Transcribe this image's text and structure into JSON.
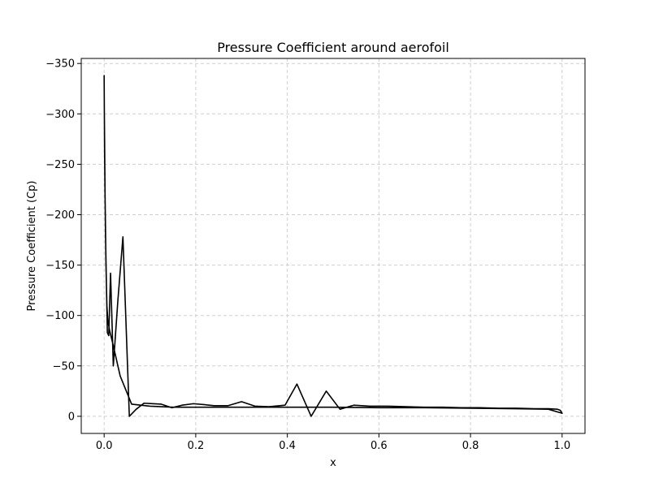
{
  "chart_data": {
    "type": "line",
    "title": "Pressure Coefficient around aerofoil",
    "xlabel": "x",
    "ylabel": "Pressure Coefficient (Cp)",
    "xlim": [
      -0.05,
      1.05
    ],
    "ylim": [
      17,
      -355
    ],
    "y_inverted": true,
    "grid": true,
    "grid_style": "dashed",
    "line_color": "#000000",
    "x_ticks": [
      0.0,
      0.2,
      0.4,
      0.6,
      0.8,
      1.0
    ],
    "x_tick_labels": [
      "0.0",
      "0.2",
      "0.4",
      "0.6",
      "0.8",
      "1.0"
    ],
    "y_ticks": [
      -350,
      -300,
      -250,
      -200,
      -150,
      -100,
      -50,
      0
    ],
    "y_tick_labels": [
      "−350",
      "−300",
      "−250",
      "−200",
      "−150",
      "−100",
      "−50",
      "0"
    ],
    "series": [
      {
        "x": [
          1.0,
          0.996,
          0.99,
          0.97,
          0.94,
          0.9,
          0.86,
          0.82,
          0.78,
          0.74,
          0.7,
          0.66,
          0.62,
          0.58,
          0.545,
          0.515,
          0.485,
          0.452,
          0.421,
          0.395,
          0.36,
          0.33,
          0.3,
          0.27,
          0.24,
          0.22,
          0.195,
          0.17,
          0.148,
          0.125,
          0.105,
          0.087,
          0.07,
          0.055,
          0.041,
          0.03,
          0.02,
          0.014,
          0.01,
          0.007,
          0.005,
          0.003,
          0.001,
          0.0,
          0.0005,
          0.002,
          0.004,
          0.006,
          0.008,
          0.012,
          0.02,
          0.035,
          0.06,
          0.1,
          0.15,
          0.2,
          0.3,
          0.4,
          0.5,
          0.6,
          0.7,
          0.8,
          0.9,
          0.97,
          1.0
        ],
        "y": [
          -3,
          -6,
          -7,
          -7.5,
          -7.5,
          -8,
          -8,
          -8.5,
          -8.5,
          -9,
          -9,
          -9.5,
          -10,
          -10,
          -11,
          -7,
          -25,
          0,
          -32,
          -11,
          -9.5,
          -10,
          -14.5,
          -10.5,
          -10.5,
          -11.5,
          -12.5,
          -11,
          -8.5,
          -12,
          -12.5,
          -13,
          -7,
          0,
          -178,
          -115,
          -50,
          -142,
          -80,
          -83,
          -130,
          -180,
          -260,
          -338,
          -300,
          -220,
          -150,
          -110,
          -95,
          -85,
          -70,
          -40,
          -12,
          -10,
          -9,
          -9,
          -9,
          -9,
          -9,
          -8.5,
          -8.5,
          -8,
          -7.5,
          -7,
          -3
        ]
      }
    ]
  }
}
